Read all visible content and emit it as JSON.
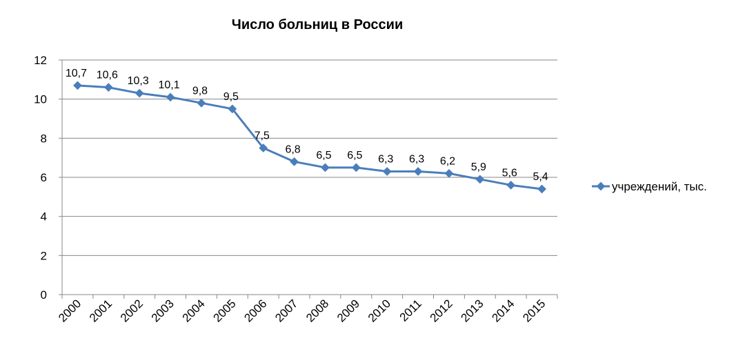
{
  "chart_data": {
    "type": "line",
    "title": "Число больниц в России",
    "categories": [
      "2000",
      "2001",
      "2002",
      "2003",
      "2004",
      "2005",
      "2006",
      "2007",
      "2008",
      "2009",
      "2010",
      "2011",
      "2012",
      "2013",
      "2014",
      "2015"
    ],
    "series": [
      {
        "name": "учреждений, тыс.",
        "values": [
          10.7,
          10.6,
          10.3,
          10.1,
          9.8,
          9.5,
          7.5,
          6.8,
          6.5,
          6.5,
          6.3,
          6.3,
          6.2,
          5.9,
          5.6,
          5.4
        ],
        "data_labels": [
          "10,7",
          "10,6",
          "10,3",
          "10,1",
          "9,8",
          "9,5",
          "7,5",
          "6,8",
          "6,5",
          "6,5",
          "6,3",
          "6,3",
          "6,2",
          "5,9",
          "5,6",
          "5,4"
        ],
        "color": "#4a7ebb"
      }
    ],
    "yticks": [
      "0",
      "2",
      "4",
      "6",
      "8",
      "10",
      "12"
    ],
    "ylim": [
      0,
      12
    ],
    "grid": true,
    "legend_position": "right"
  }
}
